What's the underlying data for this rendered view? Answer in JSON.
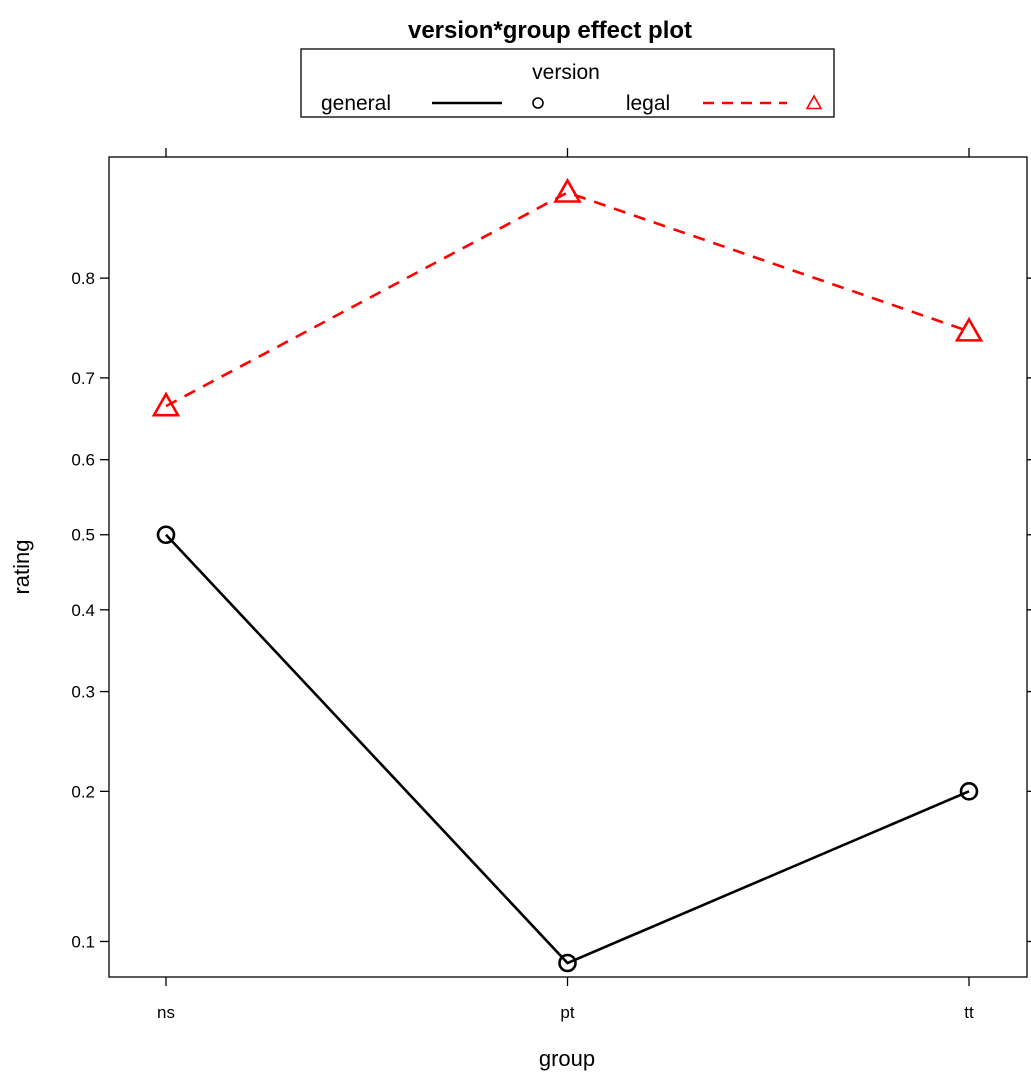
{
  "chart_data": {
    "type": "line",
    "title": "version*group effect plot",
    "xlabel": "group",
    "ylabel": "rating",
    "categories": [
      "ns",
      "pt",
      "tt"
    ],
    "y_scale": "logit",
    "ylim": [
      0.084,
      0.885
    ],
    "yticks": [
      0.1,
      0.2,
      0.3,
      0.4,
      0.5,
      0.6,
      0.7,
      0.8
    ],
    "ytick_labels": [
      "0.1",
      "0.2",
      "0.3",
      "0.4",
      "0.5",
      "0.6",
      "0.7",
      "0.8"
    ],
    "grid": false,
    "legend": {
      "title": "version",
      "placement": "top",
      "entries": [
        {
          "label": "general",
          "line": "solid",
          "marker": "circle",
          "color": "#000000"
        },
        {
          "label": "legal",
          "line": "dashed",
          "marker": "triangle",
          "color": "#ff0000"
        }
      ]
    },
    "series": [
      {
        "name": "general",
        "values": [
          0.5,
          0.09,
          0.2
        ],
        "color": "#000000",
        "line": "solid",
        "marker": "circle"
      },
      {
        "name": "legal",
        "values": [
          0.667,
          0.864,
          0.75
        ],
        "color": "#ff0000",
        "line": "dashed",
        "marker": "triangle"
      }
    ]
  }
}
